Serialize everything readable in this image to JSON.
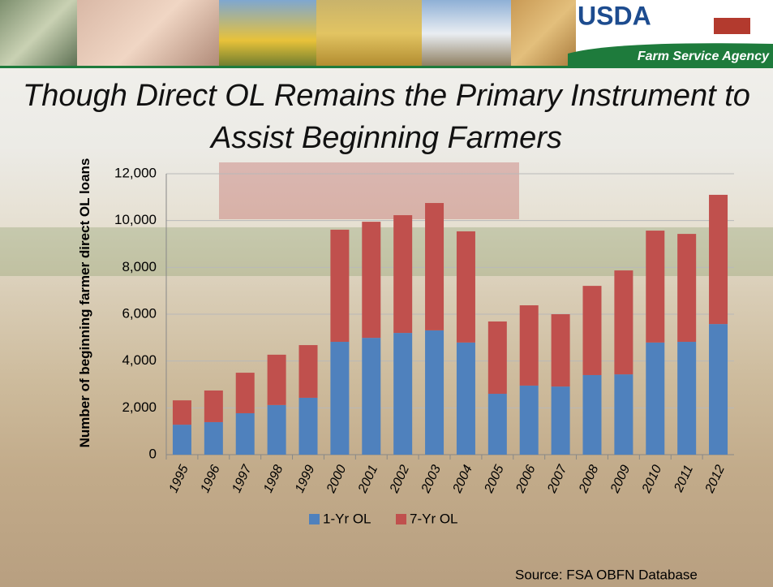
{
  "header": {
    "agency": "USDA",
    "name": "Farm Service Agency"
  },
  "chart_data": {
    "type": "stacked_bar",
    "title": "Though Direct OL Remains the Primary Instrument to Assist Beginning Farmers",
    "ylabel": "Number of beginning farmer direct OL  loans",
    "categories": [
      "1995",
      "1996",
      "1997",
      "1998",
      "1999",
      "2000",
      "2001",
      "2002",
      "2003",
      "2004",
      "2005",
      "2006",
      "2007",
      "2008",
      "2009",
      "2010",
      "2011",
      "2012"
    ],
    "series": [
      {
        "name": "1-Yr OL",
        "color": "#4f81bd",
        "values": [
          1280,
          1390,
          1770,
          2120,
          2430,
          4820,
          4990,
          5200,
          5310,
          4790,
          2600,
          2950,
          2910,
          3400,
          3430,
          4790,
          4820,
          5580
        ]
      },
      {
        "name": "7-Yr OL",
        "color": "#c0504d",
        "values": [
          1040,
          1350,
          1730,
          2150,
          2250,
          4790,
          4960,
          5030,
          5440,
          4750,
          3090,
          3430,
          3090,
          3810,
          4440,
          4780,
          4610,
          5520
        ]
      }
    ],
    "ylim": [
      0,
      12000
    ],
    "yticks": [
      0,
      {
        "value": 2000,
        "label": "2,000"
      },
      {
        "value": 4000,
        "label": "4,000"
      },
      {
        "value": 6000,
        "label": "6,000"
      },
      {
        "value": 8000,
        "label": "8,000"
      },
      {
        "value": 10000,
        "label": "10,000"
      },
      {
        "value": 12000,
        "label": "12,000"
      }
    ],
    "grid": true,
    "legend": "bottom",
    "source": "Source: FSA OBFN Database"
  }
}
